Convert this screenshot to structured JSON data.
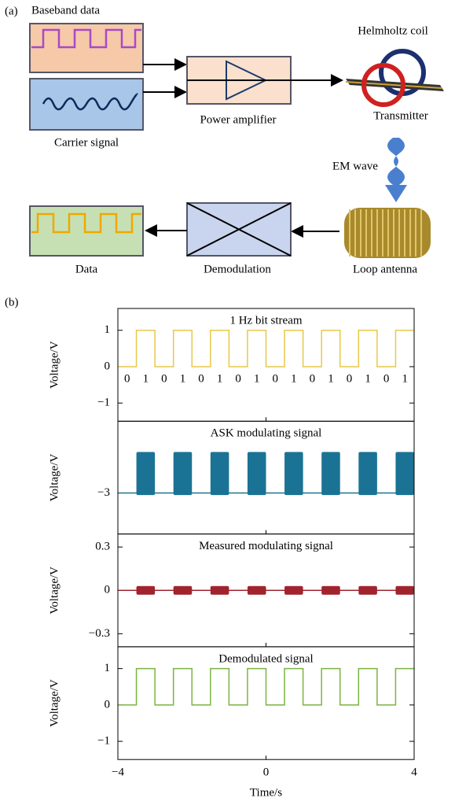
{
  "panel_labels": [
    "(a)",
    "(b)"
  ],
  "diagram": {
    "baseband": "Baseband data",
    "carrier": "Carrier signal",
    "amplifier": "Power amplifier",
    "coil": "Helmholtz coil",
    "transmitter": "Transmitter",
    "em_wave": "EM wave",
    "antenna": "Loop antenna",
    "demodulation": "Demodulation",
    "data": "Data"
  },
  "chart_data": [
    {
      "type": "step",
      "title": "1 Hz bit stream",
      "ylabel": "Voltage/V",
      "color": "#e8c84a",
      "x": [
        -4,
        -3.5,
        -3.5,
        -3,
        -3,
        -2.5,
        -2.5,
        -2,
        -2,
        -1.5,
        -1.5,
        -1,
        -1,
        -0.5,
        -0.5,
        0,
        0,
        0.5,
        0.5,
        1,
        1,
        1.5,
        1.5,
        2,
        2,
        2.5,
        2.5,
        3,
        3,
        3.5,
        3.5,
        4
      ],
      "values": [
        0,
        0,
        1,
        1,
        0,
        0,
        1,
        1,
        0,
        0,
        1,
        1,
        0,
        0,
        1,
        1,
        0,
        0,
        1,
        1,
        0,
        0,
        1,
        1,
        0,
        0,
        1,
        1,
        0,
        0,
        1,
        1
      ],
      "bits": [
        "0",
        "1",
        "0",
        "1",
        "0",
        "1",
        "0",
        "1",
        "0",
        "1",
        "0",
        "1",
        "0",
        "1",
        "0",
        "1"
      ],
      "xlim": [
        -4,
        4
      ],
      "xticks": [
        {
          "value": -4,
          "label": "−4"
        },
        0,
        4
      ],
      "ylim": [
        -1.5,
        1.6
      ],
      "yticks": [
        {
          "value": -1,
          "label": "−1"
        },
        0,
        1
      ]
    },
    {
      "type": "bursts",
      "title": "ASK modulating signal",
      "ylabel": "Voltage/V",
      "color": "#1a7394",
      "baseline": -3,
      "starts": [
        -3.5,
        -2.5,
        -1.5,
        -0.5,
        0.5,
        1.5,
        2.5,
        3.5
      ],
      "ends": [
        -3,
        -2,
        -1,
        0,
        1,
        2,
        3,
        4
      ],
      "low": [
        -3.1,
        -3.1,
        -3.1,
        -3.1,
        -3.1,
        -3.1,
        -3.1,
        -3.1
      ],
      "high": [
        -1,
        -1,
        -1,
        -1,
        -1,
        -1,
        -1,
        -1
      ],
      "xlim": [
        -4,
        4
      ],
      "xticks": [
        {
          "value": -4,
          "label": "−4"
        },
        0,
        4
      ],
      "ylim": [
        -5,
        0.5
      ],
      "yticks": [
        {
          "value": -3,
          "label": "−3"
        }
      ]
    },
    {
      "type": "bursts",
      "title": "Measured modulating signal",
      "ylabel": "Voltage/V",
      "color": "#a0232e",
      "baseline": 0,
      "starts": [
        -3.5,
        -2.5,
        -1.5,
        -0.5,
        0.5,
        1.5,
        2.5,
        3.5
      ],
      "ends": [
        -3,
        -2,
        -1,
        0,
        1,
        2,
        3,
        4
      ],
      "low": [
        -0.03,
        -0.03,
        -0.03,
        -0.03,
        -0.03,
        -0.03,
        -0.03,
        -0.03
      ],
      "high": [
        0.03,
        0.03,
        0.03,
        0.03,
        0.03,
        0.03,
        0.03,
        0.03
      ],
      "xlim": [
        -4,
        4
      ],
      "xticks": [
        {
          "value": -4,
          "label": "−4"
        },
        0,
        4
      ],
      "ylim": [
        -0.39,
        0.39
      ],
      "yticks": [
        {
          "value": -0.3,
          "label": "−0.3"
        },
        0,
        0.3
      ]
    },
    {
      "type": "step",
      "title": "Demodulated signal",
      "ylabel": "Voltage/V",
      "xlabel": "Time/s",
      "color": "#7cb342",
      "x": [
        -4,
        -3.5,
        -3.5,
        -3,
        -3,
        -2.5,
        -2.5,
        -2,
        -2,
        -1.5,
        -1.5,
        -1,
        -1,
        -0.5,
        -0.5,
        0,
        0,
        0.5,
        0.5,
        1,
        1,
        1.5,
        1.5,
        2,
        2,
        2.5,
        2.5,
        3,
        3,
        3.5,
        3.5,
        4
      ],
      "values": [
        0,
        0,
        1,
        1,
        0,
        0,
        1,
        1,
        0,
        0,
        1,
        1,
        0,
        0,
        1,
        1,
        0,
        0,
        1,
        1,
        0,
        0,
        1,
        1,
        0,
        0,
        1,
        1,
        0,
        0,
        1,
        1
      ],
      "xlim": [
        -4,
        4
      ],
      "xticks": [
        {
          "value": -4,
          "label": "−4"
        },
        0,
        4
      ],
      "ylim": [
        -1.5,
        1.6
      ],
      "yticks": [
        {
          "value": -1,
          "label": "−1"
        },
        0,
        1
      ]
    }
  ]
}
